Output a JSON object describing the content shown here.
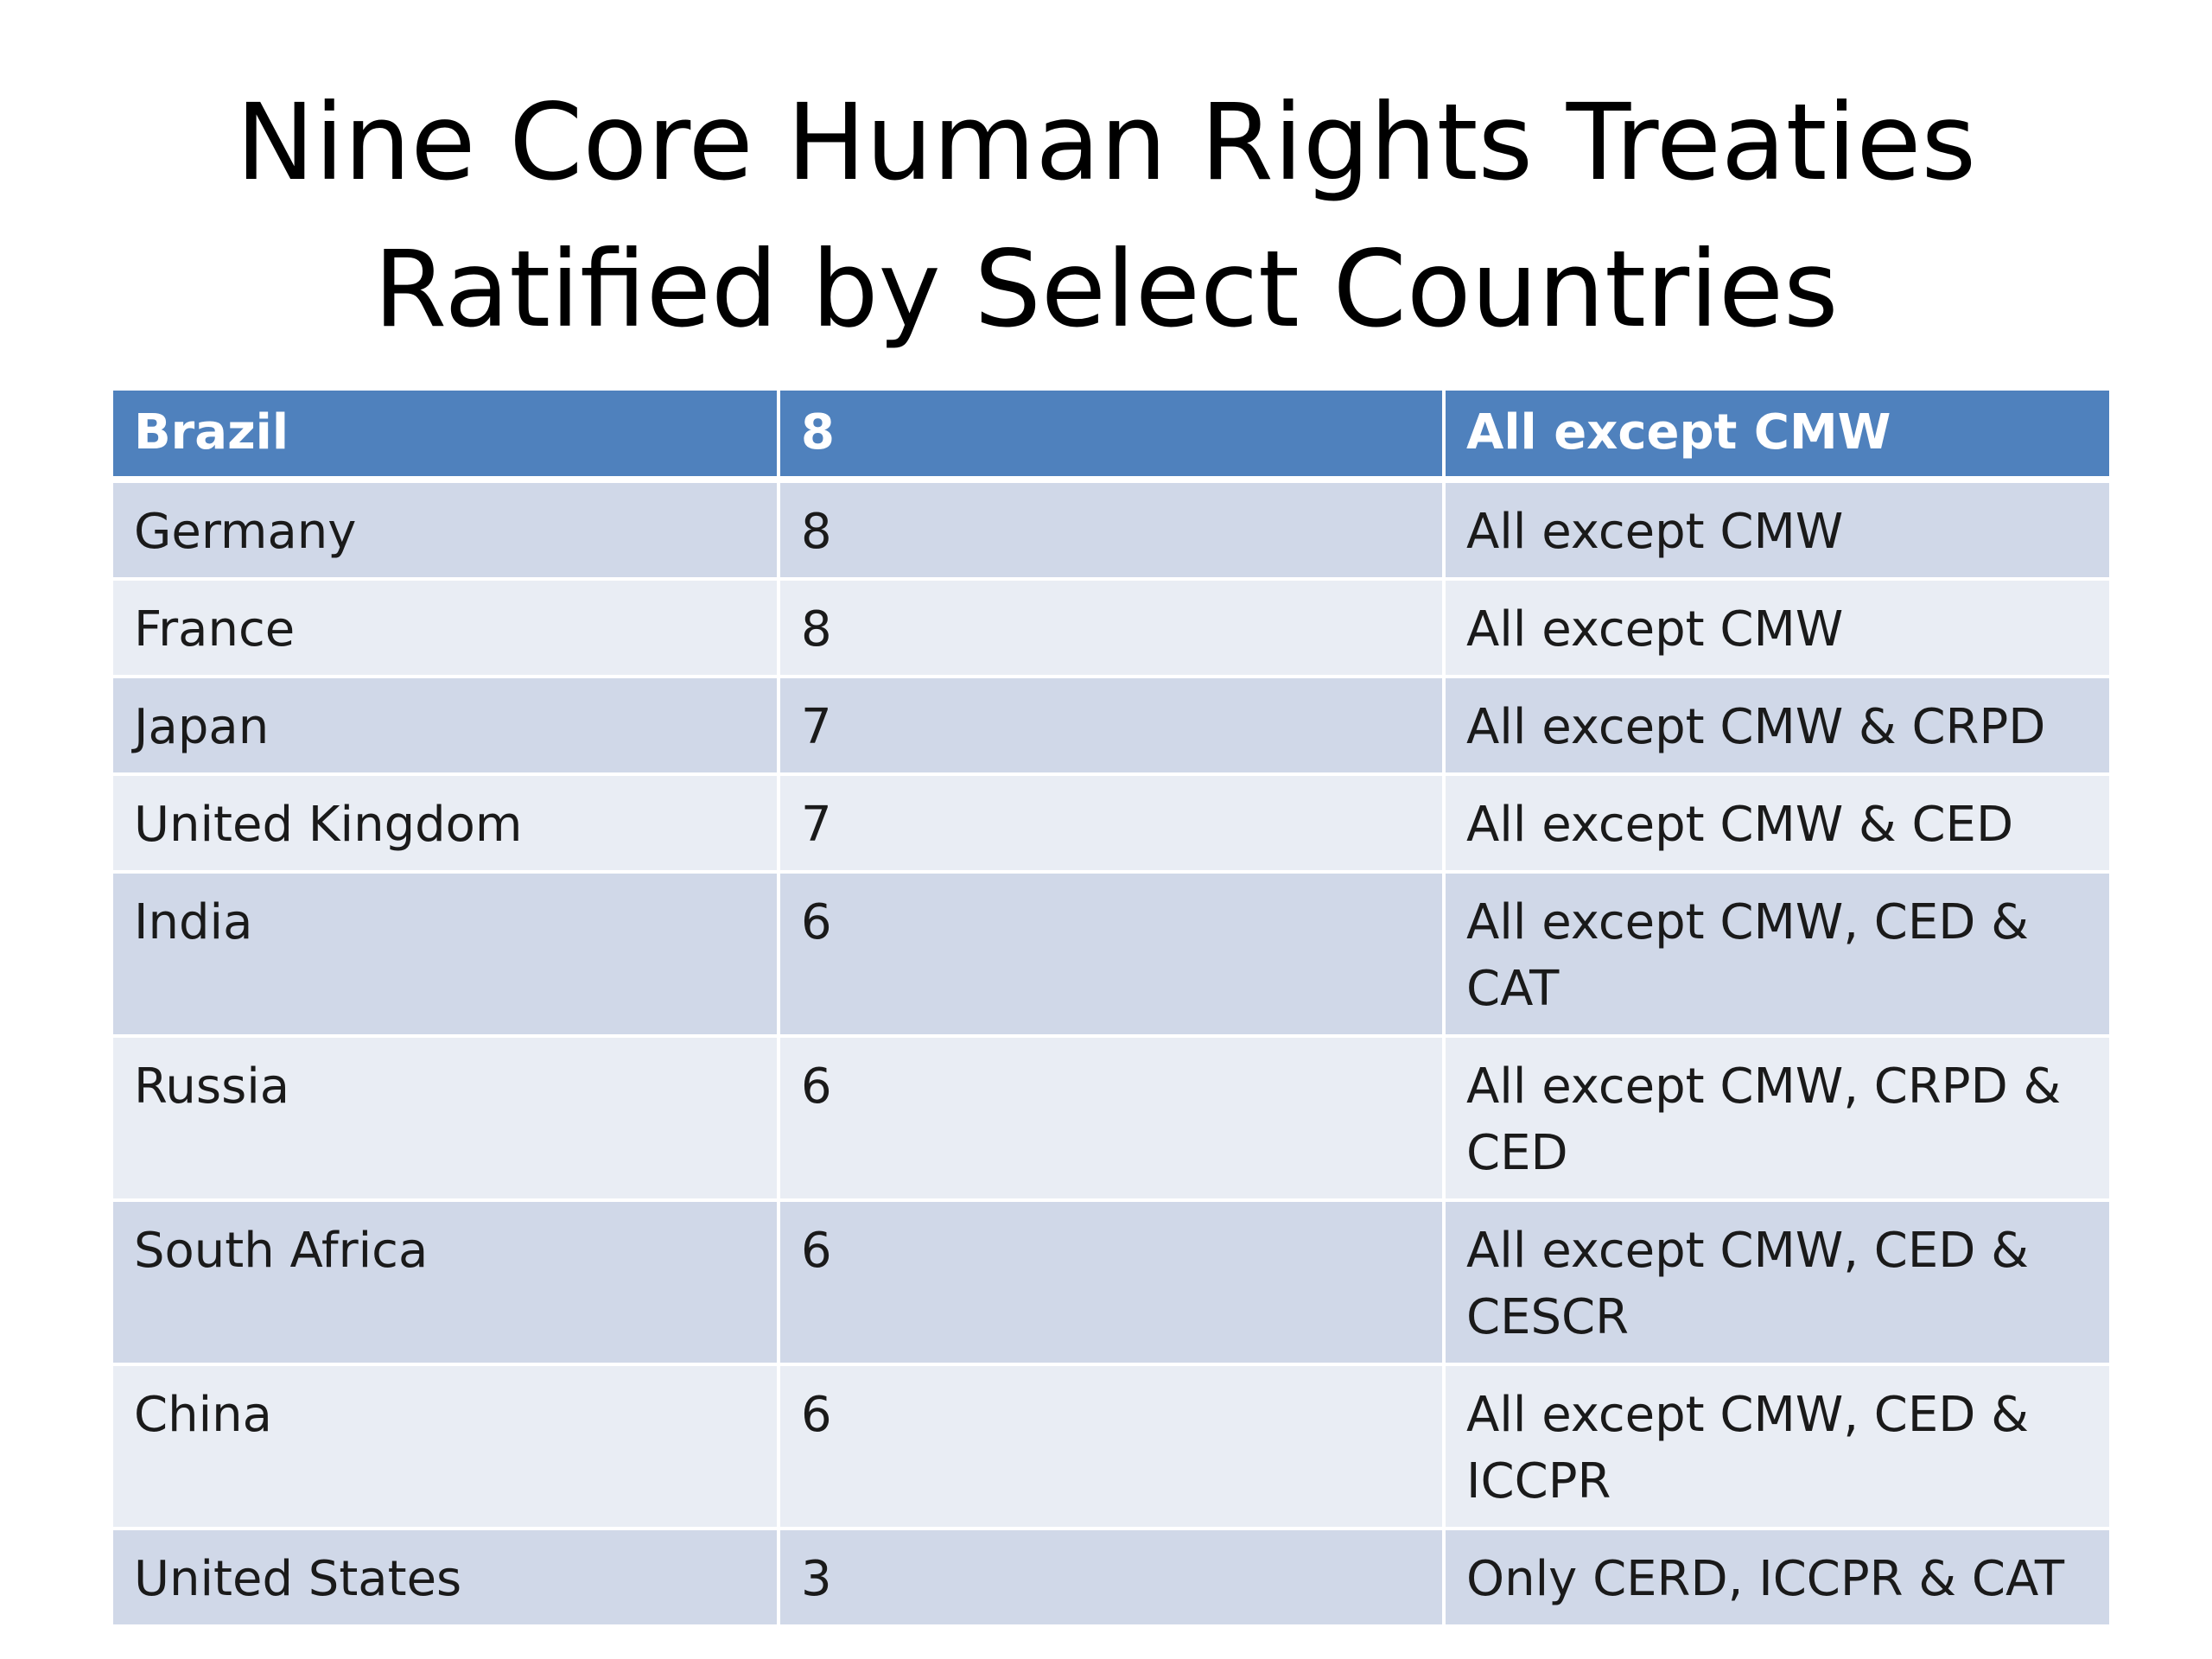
{
  "slide": {
    "title_line1": "Nine Core Human Rights Treaties",
    "title_line2": "Ratified by Select Countries"
  },
  "table": {
    "colors": {
      "header_bg": "#4f81bd",
      "row_dark": "#d0d8e8",
      "row_light": "#e9edf4"
    },
    "header": {
      "country": "Brazil",
      "count": "8",
      "treaties": "All except CMW"
    },
    "rows": [
      {
        "country": "Germany",
        "count": "8",
        "treaties": "All except CMW"
      },
      {
        "country": "France",
        "count": "8",
        "treaties": "All except CMW"
      },
      {
        "country": "Japan",
        "count": "7",
        "treaties": "All except CMW & CRPD"
      },
      {
        "country": "United Kingdom",
        "count": "7",
        "treaties": "All except CMW & CED"
      },
      {
        "country": "India",
        "count": "6",
        "treaties": "All except CMW, CED & CAT"
      },
      {
        "country": "Russia",
        "count": "6",
        "treaties": "All except CMW, CRPD & CED"
      },
      {
        "country": "South Africa",
        "count": "6",
        "treaties": "All except CMW, CED & CESCR"
      },
      {
        "country": "China",
        "count": "6",
        "treaties": "All except CMW, CED & ICCPR"
      },
      {
        "country": "United States",
        "count": "3",
        "treaties": "Only CERD, ICCPR & CAT"
      }
    ]
  }
}
